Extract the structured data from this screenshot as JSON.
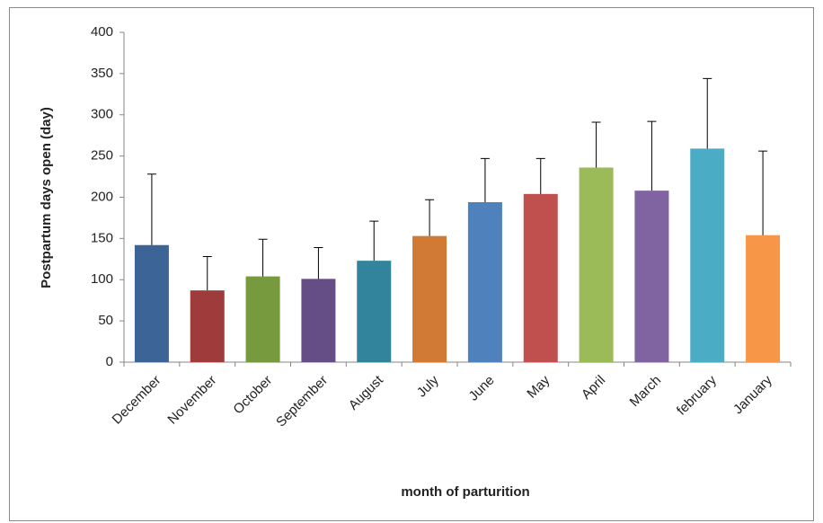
{
  "chart_data": {
    "type": "bar",
    "x_label": "month of parturition",
    "y_label": "Postpartum days open (day)",
    "categories": [
      "December",
      "November",
      "October",
      "September",
      "August",
      "July",
      "June",
      "May",
      "April",
      "March",
      "february",
      "January"
    ],
    "values": [
      142,
      87,
      104,
      101,
      123,
      153,
      194,
      204,
      236,
      208,
      259,
      154
    ],
    "errors": [
      86,
      41,
      45,
      38,
      48,
      44,
      53,
      43,
      55,
      84,
      85,
      102
    ],
    "colors": [
      "#3c6496",
      "#9e3b3b",
      "#789a3e",
      "#654e85",
      "#31849b",
      "#d07a35",
      "#4f81bd",
      "#c0504d",
      "#9bbb59",
      "#8064a2",
      "#4bacc6",
      "#f79646"
    ],
    "ylim": [
      0,
      400
    ],
    "yticks": [
      0,
      50,
      100,
      150,
      200,
      250,
      300,
      350,
      400
    ]
  }
}
